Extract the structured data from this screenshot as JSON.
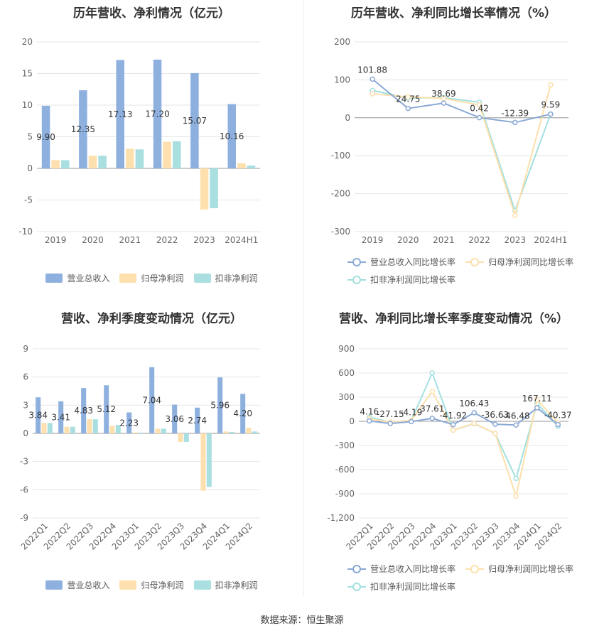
{
  "colors": {
    "revenue": "#8eb0df",
    "net_profit": "#fde0ad",
    "deducted_profit": "#a9dfe0",
    "line_revenue": "#8aa9d6",
    "line_net_profit": "#fde0ad",
    "line_deducted": "#a3e0df",
    "grid": "#e6e6e6",
    "axis_text": "#666666"
  },
  "source": "数据来源：恒生聚源",
  "legend": {
    "revenue": "营业总收入",
    "net_profit": "归母净利润",
    "deducted_profit": "扣非净利润",
    "revenue_yoy": "营业总收入同比增长率",
    "net_profit_yoy": "归母净利润同比增长率",
    "deducted_yoy": "扣非净利润同比增长率"
  },
  "chart_data": [
    {
      "id": "annual",
      "type": "bar",
      "title": "历年营收、净利情况（亿元）",
      "categories": [
        "2019",
        "2020",
        "2021",
        "2022",
        "2023",
        "2024H1"
      ],
      "ylim": [
        -10,
        20
      ],
      "yticks": [
        -10,
        -5,
        0,
        5,
        10,
        15,
        20
      ],
      "series": [
        {
          "name": "营业总收入",
          "values": [
            9.9,
            12.35,
            17.13,
            17.2,
            15.07,
            10.16
          ],
          "labels": [
            "9.90",
            "12.35",
            "17.13",
            "17.20",
            "15.07",
            "10.16"
          ]
        },
        {
          "name": "归母净利润",
          "values": [
            1.3,
            2.0,
            3.1,
            4.2,
            -6.5,
            0.8
          ]
        },
        {
          "name": "扣非净利润",
          "values": [
            1.3,
            2.0,
            3.0,
            4.3,
            -6.3,
            0.45
          ]
        }
      ]
    },
    {
      "id": "annual_yoy",
      "type": "line",
      "title": "历年营收、净利同比增长率情况（%）",
      "categories": [
        "2019",
        "2020",
        "2021",
        "2022",
        "2023",
        "2024H1"
      ],
      "ylim": [
        -300,
        200
      ],
      "yticks": [
        -300,
        -200,
        -100,
        0,
        100,
        200
      ],
      "series": [
        {
          "name": "营业总收入同比增长率",
          "values": [
            101.88,
            24.75,
            38.69,
            0.42,
            -12.39,
            9.59
          ],
          "labels": [
            "101.88",
            "24.75",
            "38.69",
            "0.42",
            "-12.39",
            "9.59"
          ]
        },
        {
          "name": "归母净利润同比增长率",
          "values": [
            63,
            55,
            51,
            34,
            -257,
            87
          ]
        },
        {
          "name": "扣非净利润同比增长率",
          "values": [
            72,
            52,
            53,
            41,
            -245,
            10
          ]
        }
      ]
    },
    {
      "id": "quarterly",
      "type": "bar",
      "title": "营收、净利季度变动情况（亿元）",
      "categories": [
        "2022Q1",
        "2022Q2",
        "2022Q3",
        "2022Q4",
        "2023Q1",
        "2023Q2",
        "2023Q3",
        "2023Q4",
        "2024Q1",
        "2024Q2"
      ],
      "ylim": [
        -9,
        9
      ],
      "yticks": [
        -9,
        -6,
        -3,
        0,
        3,
        6,
        9
      ],
      "series": [
        {
          "name": "营业总收入",
          "values": [
            3.84,
            3.41,
            4.83,
            5.12,
            2.23,
            7.04,
            3.06,
            2.74,
            5.96,
            4.2
          ],
          "labels": [
            "3.84",
            "3.41",
            "4.83",
            "5.12",
            "2.23",
            "7.04",
            "3.06",
            "2.74",
            "5.96",
            "4.20"
          ]
        },
        {
          "name": "归母净利润",
          "values": [
            1.1,
            0.7,
            1.5,
            0.8,
            0.1,
            0.5,
            -0.9,
            -6.1,
            0.2,
            0.6
          ]
        },
        {
          "name": "扣非净利润",
          "values": [
            1.1,
            0.7,
            1.5,
            0.9,
            -0.05,
            0.5,
            -0.9,
            -5.7,
            0.15,
            0.2
          ]
        }
      ]
    },
    {
      "id": "quarterly_yoy",
      "type": "line",
      "title": "营收、净利同比增长率季度变动情况（%）",
      "categories": [
        "2022Q1",
        "2022Q2",
        "2022Q3",
        "2022Q4",
        "2023Q1",
        "2023Q2",
        "2023Q3",
        "2023Q4",
        "2024Q1",
        "2024Q2"
      ],
      "ylim": [
        -1200,
        900
      ],
      "yticks": [
        -1200,
        -900,
        -600,
        -300,
        0,
        300,
        600,
        900
      ],
      "yticklabels": [
        "-1,200",
        "-900",
        "-600",
        "-300",
        "0",
        "300",
        "600",
        "900"
      ],
      "series": [
        {
          "name": "营业总收入同比增长率",
          "values": [
            4.16,
            -27.15,
            -4.19,
            37.61,
            -41.92,
            106.43,
            -36.63,
            -46.48,
            167.11,
            -40.37
          ],
          "labels": [
            "4.16",
            "-27.15",
            "-4.19",
            "37.61",
            "-41.92",
            "106.43",
            "-36.63",
            "-46.48",
            "167.11",
            "-40.37"
          ]
        },
        {
          "name": "归母净利润同比增长率",
          "values": [
            30,
            -10,
            10,
            370,
            -110,
            -25,
            -150,
            -930,
            270,
            -20
          ]
        },
        {
          "name": "扣非净利润同比增长率",
          "values": [
            50,
            -10,
            10,
            600,
            -110,
            -30,
            -150,
            -710,
            220,
            -60
          ]
        }
      ]
    }
  ]
}
